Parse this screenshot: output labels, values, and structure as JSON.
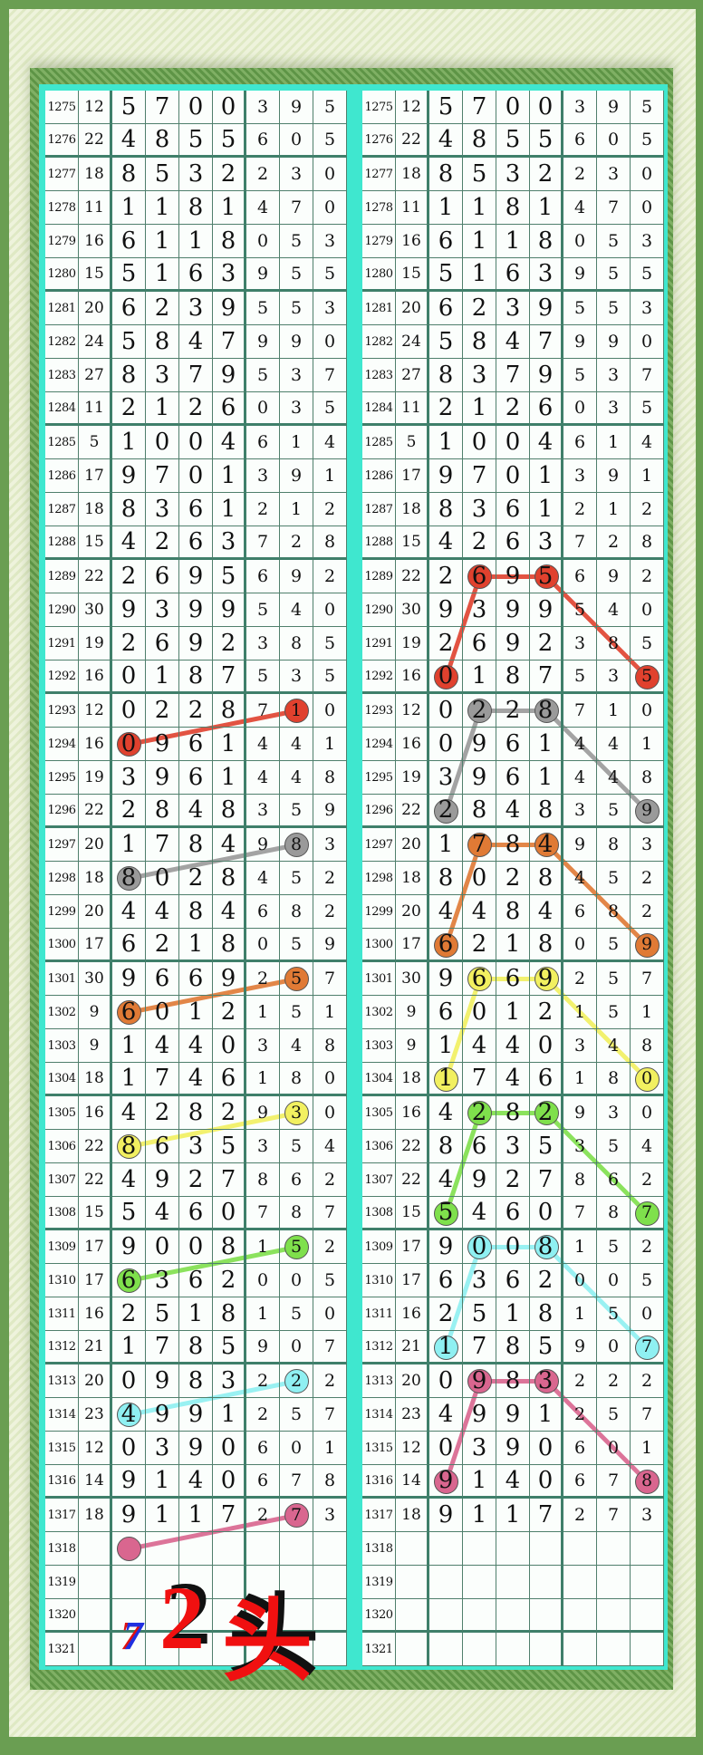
{
  "chart_data": {
    "type": "table",
    "columns": [
      "issue",
      "sum",
      "d1",
      "d2",
      "d3",
      "d4",
      "d5",
      "d6",
      "d7"
    ],
    "rows": [
      [
        "1275",
        "12",
        "5",
        "7",
        "0",
        "0",
        "3",
        "9",
        "5"
      ],
      [
        "1276",
        "22",
        "4",
        "8",
        "5",
        "5",
        "6",
        "0",
        "5"
      ],
      [
        "1277",
        "18",
        "8",
        "5",
        "3",
        "2",
        "2",
        "3",
        "0"
      ],
      [
        "1278",
        "11",
        "1",
        "1",
        "8",
        "1",
        "4",
        "7",
        "0"
      ],
      [
        "1279",
        "16",
        "6",
        "1",
        "1",
        "8",
        "0",
        "5",
        "3"
      ],
      [
        "1280",
        "15",
        "5",
        "1",
        "6",
        "3",
        "9",
        "5",
        "5"
      ],
      [
        "1281",
        "20",
        "6",
        "2",
        "3",
        "9",
        "5",
        "5",
        "3"
      ],
      [
        "1282",
        "24",
        "5",
        "8",
        "4",
        "7",
        "9",
        "9",
        "0"
      ],
      [
        "1283",
        "27",
        "8",
        "3",
        "7",
        "9",
        "5",
        "3",
        "7"
      ],
      [
        "1284",
        "11",
        "2",
        "1",
        "2",
        "6",
        "0",
        "3",
        "5"
      ],
      [
        "1285",
        "5",
        "1",
        "0",
        "0",
        "4",
        "6",
        "1",
        "4"
      ],
      [
        "1286",
        "17",
        "9",
        "7",
        "0",
        "1",
        "3",
        "9",
        "1"
      ],
      [
        "1287",
        "18",
        "8",
        "3",
        "6",
        "1",
        "2",
        "1",
        "2"
      ],
      [
        "1288",
        "15",
        "4",
        "2",
        "6",
        "3",
        "7",
        "2",
        "8"
      ],
      [
        "1289",
        "22",
        "2",
        "6",
        "9",
        "5",
        "6",
        "9",
        "2"
      ],
      [
        "1290",
        "30",
        "9",
        "3",
        "9",
        "9",
        "5",
        "4",
        "0"
      ],
      [
        "1291",
        "19",
        "2",
        "6",
        "9",
        "2",
        "3",
        "8",
        "5"
      ],
      [
        "1292",
        "16",
        "0",
        "1",
        "8",
        "7",
        "5",
        "3",
        "5"
      ],
      [
        "1293",
        "12",
        "0",
        "2",
        "2",
        "8",
        "7",
        "1",
        "0"
      ],
      [
        "1294",
        "16",
        "0",
        "9",
        "6",
        "1",
        "4",
        "4",
        "1"
      ],
      [
        "1295",
        "19",
        "3",
        "9",
        "6",
        "1",
        "4",
        "4",
        "8"
      ],
      [
        "1296",
        "22",
        "2",
        "8",
        "4",
        "8",
        "3",
        "5",
        "9"
      ],
      [
        "1297",
        "20",
        "1",
        "7",
        "8",
        "4",
        "9",
        "8",
        "3"
      ],
      [
        "1298",
        "18",
        "8",
        "0",
        "2",
        "8",
        "4",
        "5",
        "2"
      ],
      [
        "1299",
        "20",
        "4",
        "4",
        "8",
        "4",
        "6",
        "8",
        "2"
      ],
      [
        "1300",
        "17",
        "6",
        "2",
        "1",
        "8",
        "0",
        "5",
        "9"
      ],
      [
        "1301",
        "30",
        "9",
        "6",
        "6",
        "9",
        "2",
        "5",
        "7"
      ],
      [
        "1302",
        "9",
        "6",
        "0",
        "1",
        "2",
        "1",
        "5",
        "1"
      ],
      [
        "1303",
        "9",
        "1",
        "4",
        "4",
        "0",
        "3",
        "4",
        "8"
      ],
      [
        "1304",
        "18",
        "1",
        "7",
        "4",
        "6",
        "1",
        "8",
        "0"
      ],
      [
        "1305",
        "16",
        "4",
        "2",
        "8",
        "2",
        "9",
        "3",
        "0"
      ],
      [
        "1306",
        "22",
        "8",
        "6",
        "3",
        "5",
        "3",
        "5",
        "4"
      ],
      [
        "1307",
        "22",
        "4",
        "9",
        "2",
        "7",
        "8",
        "6",
        "2"
      ],
      [
        "1308",
        "15",
        "5",
        "4",
        "6",
        "0",
        "7",
        "8",
        "7"
      ],
      [
        "1309",
        "17",
        "9",
        "0",
        "0",
        "8",
        "1",
        "5",
        "2"
      ],
      [
        "1310",
        "17",
        "6",
        "3",
        "6",
        "2",
        "0",
        "0",
        "5"
      ],
      [
        "1311",
        "16",
        "2",
        "5",
        "1",
        "8",
        "1",
        "5",
        "0"
      ],
      [
        "1312",
        "21",
        "1",
        "7",
        "8",
        "5",
        "9",
        "0",
        "7"
      ],
      [
        "1313",
        "20",
        "0",
        "9",
        "8",
        "3",
        "2",
        "2",
        "2"
      ],
      [
        "1314",
        "23",
        "4",
        "9",
        "9",
        "1",
        "2",
        "5",
        "7"
      ],
      [
        "1315",
        "12",
        "0",
        "3",
        "9",
        "0",
        "6",
        "0",
        "1"
      ],
      [
        "1316",
        "14",
        "9",
        "1",
        "4",
        "0",
        "6",
        "7",
        "8"
      ],
      [
        "1317",
        "18",
        "9",
        "1",
        "1",
        "7",
        "2",
        "7",
        "3"
      ],
      [
        "1318",
        "",
        "",
        "",
        "",
        "",
        "",
        "",
        ""
      ],
      [
        "1319",
        "",
        "",
        "",
        "",
        "",
        "",
        "",
        ""
      ],
      [
        "1320",
        "",
        "",
        "",
        "",
        "",
        "",
        "",
        ""
      ],
      [
        "1321",
        "",
        "",
        "",
        "",
        "",
        "",
        "",
        ""
      ]
    ],
    "colors": {
      "red": "#e0412e",
      "gray": "#9a9a9a",
      "orange": "#e07a35",
      "yellow": "#f2f060",
      "green": "#7fe04c",
      "cyan": "#8ff0f2",
      "pink": "#d9668f"
    },
    "left_marks": [
      {
        "color": "red",
        "cells": [
          [
            "1293",
            5
          ],
          [
            "1294",
            0
          ]
        ],
        "links": [
          [
            0,
            1
          ]
        ]
      },
      {
        "color": "gray",
        "cells": [
          [
            "1297",
            5
          ],
          [
            "1298",
            0
          ]
        ],
        "links": [
          [
            0,
            1
          ]
        ]
      },
      {
        "color": "orange",
        "cells": [
          [
            "1301",
            5
          ],
          [
            "1302",
            0
          ]
        ],
        "links": [
          [
            0,
            1
          ]
        ]
      },
      {
        "color": "yellow",
        "cells": [
          [
            "1305",
            5
          ],
          [
            "1306",
            0
          ]
        ],
        "links": [
          [
            0,
            1
          ]
        ]
      },
      {
        "color": "green",
        "cells": [
          [
            "1309",
            5
          ],
          [
            "1310",
            0
          ]
        ],
        "links": [
          [
            0,
            1
          ]
        ]
      },
      {
        "color": "cyan",
        "cells": [
          [
            "1313",
            5
          ],
          [
            "1314",
            0
          ]
        ],
        "links": [
          [
            0,
            1
          ]
        ]
      },
      {
        "color": "pink",
        "cells": [
          [
            "1317",
            5
          ],
          [
            "1318",
            0
          ]
        ],
        "links": [
          [
            0,
            1
          ]
        ]
      }
    ],
    "right_marks": [
      {
        "color": "red",
        "cells": [
          [
            "1289",
            1
          ],
          [
            "1289",
            3
          ],
          [
            "1292",
            0
          ],
          [
            "1292",
            6
          ]
        ],
        "links": [
          [
            0,
            1
          ],
          [
            0,
            2
          ],
          [
            1,
            3
          ]
        ]
      },
      {
        "color": "gray",
        "cells": [
          [
            "1293",
            1
          ],
          [
            "1293",
            3
          ],
          [
            "1296",
            0
          ],
          [
            "1296",
            6
          ]
        ],
        "links": [
          [
            0,
            1
          ],
          [
            0,
            2
          ],
          [
            1,
            3
          ]
        ]
      },
      {
        "color": "orange",
        "cells": [
          [
            "1297",
            1
          ],
          [
            "1297",
            3
          ],
          [
            "1300",
            0
          ],
          [
            "1300",
            6
          ]
        ],
        "links": [
          [
            0,
            1
          ],
          [
            0,
            2
          ],
          [
            1,
            3
          ]
        ]
      },
      {
        "color": "yellow",
        "cells": [
          [
            "1301",
            1
          ],
          [
            "1301",
            3
          ],
          [
            "1304",
            0
          ],
          [
            "1304",
            6
          ]
        ],
        "links": [
          [
            0,
            1
          ],
          [
            0,
            2
          ],
          [
            1,
            3
          ]
        ]
      },
      {
        "color": "green",
        "cells": [
          [
            "1305",
            1
          ],
          [
            "1305",
            3
          ],
          [
            "1308",
            0
          ],
          [
            "1308",
            6
          ]
        ],
        "links": [
          [
            0,
            1
          ],
          [
            0,
            2
          ],
          [
            1,
            3
          ]
        ]
      },
      {
        "color": "cyan",
        "cells": [
          [
            "1309",
            1
          ],
          [
            "1309",
            3
          ],
          [
            "1312",
            0
          ],
          [
            "1312",
            6
          ]
        ],
        "links": [
          [
            0,
            1
          ],
          [
            0,
            2
          ],
          [
            1,
            3
          ]
        ]
      },
      {
        "color": "pink",
        "cells": [
          [
            "1313",
            1
          ],
          [
            "1313",
            3
          ],
          [
            "1316",
            0
          ],
          [
            "1316",
            6
          ]
        ],
        "links": [
          [
            0,
            1
          ],
          [
            0,
            2
          ],
          [
            1,
            3
          ]
        ]
      }
    ]
  },
  "prediction": {
    "small": "7",
    "main": "2",
    "suffix": "头"
  }
}
